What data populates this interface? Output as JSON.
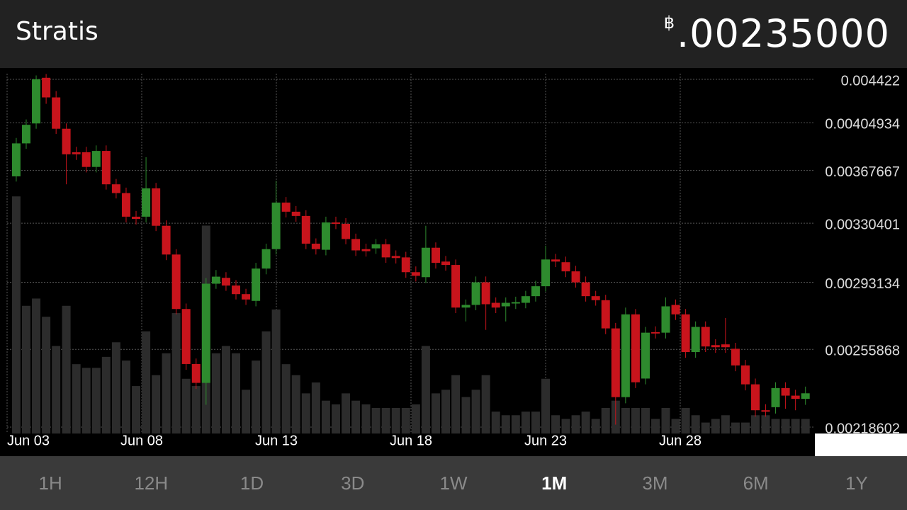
{
  "header": {
    "title": "Stratis",
    "currency": "฿",
    "price": ".00235000"
  },
  "tabs": [
    "1H",
    "12H",
    "1D",
    "3D",
    "1W",
    "1M",
    "3M",
    "6M",
    "1Y"
  ],
  "active_tab": "1M",
  "chart_data": {
    "type": "candlestick",
    "up_color": "#2e8b2e",
    "down_color": "#c8141c",
    "volume_color": "#2c2c2c",
    "log_scale": true,
    "grid": true,
    "xlim": [
      0,
      30
    ],
    "xticks": [
      {
        "value": 0,
        "label": "Jun 03"
      },
      {
        "value": 5,
        "label": "Jun 08"
      },
      {
        "value": 10,
        "label": "Jun 13"
      },
      {
        "value": 15,
        "label": "Jun 18"
      },
      {
        "value": 20,
        "label": "Jun 23"
      },
      {
        "value": 25,
        "label": "Jun 28"
      }
    ],
    "ylim": [
      0.00218602,
      0.004422
    ],
    "yticks": [
      0.004422,
      0.00404934,
      0.00367667,
      0.00330401,
      0.00293134,
      0.00255868,
      0.00218602
    ],
    "y2lim": [
      0,
      100
    ],
    "x": [
      0.34,
      0.71,
      1.08,
      1.45,
      1.82,
      2.2,
      2.57,
      2.94,
      3.31,
      3.68,
      4.05,
      4.42,
      4.79,
      5.16,
      5.53,
      5.91,
      6.28,
      6.65,
      7.02,
      7.39,
      7.76,
      8.13,
      8.5,
      8.87,
      9.24,
      9.62,
      9.99,
      10.36,
      10.73,
      11.1,
      11.47,
      11.84,
      12.21,
      12.58,
      12.95,
      13.33,
      13.7,
      14.07,
      14.44,
      14.81,
      15.18,
      15.55,
      15.92,
      16.29,
      16.66,
      17.04,
      17.41,
      17.78,
      18.15,
      18.52,
      18.89,
      19.26,
      19.63,
      20.0,
      20.37,
      20.75,
      21.12,
      21.49,
      21.86,
      22.23,
      22.6,
      22.97,
      23.34,
      23.71,
      24.08,
      24.46,
      24.83,
      25.2,
      25.57,
      25.94,
      26.31,
      26.68,
      27.05,
      27.42,
      27.79,
      28.17,
      28.54,
      28.91,
      29.28,
      29.65
    ],
    "open": [
      0.003633,
      0.003884,
      0.004044,
      0.004436,
      0.004263,
      0.004001,
      0.003815,
      0.003815,
      0.003703,
      0.003825,
      0.003575,
      0.003512,
      0.003348,
      0.003348,
      0.003546,
      0.003287,
      0.003101,
      0.002777,
      0.002484,
      0.002391,
      0.002923,
      0.002958,
      0.002912,
      0.002862,
      0.002823,
      0.003014,
      0.003135,
      0.003445,
      0.003382,
      0.003353,
      0.00317,
      0.003131,
      0.003309,
      0.0033,
      0.0032,
      0.003135,
      0.00314,
      0.003166,
      0.003092,
      0.003083,
      0.002992,
      0.002962,
      0.003144,
      0.003057,
      0.003036,
      0.002785,
      0.0028,
      0.002931,
      0.002812,
      0.002792,
      0.002808,
      0.002812,
      0.00285,
      0.002908,
      0.00307,
      0.003053,
      0.002997,
      0.002931,
      0.00285,
      0.002827,
      0.00267,
      0.002323,
      0.002747,
      0.002412,
      0.00265,
      0.002647,
      0.0028,
      0.002747,
      0.002545,
      0.002678,
      0.002581,
      0.002585,
      0.002562,
      0.002477,
      0.002384,
      0.002262,
      0.002276,
      0.002366,
      0.00233,
      0.002315
    ],
    "high": [
      0.003927,
      0.004077,
      0.004457,
      0.00447,
      0.004318,
      0.004044,
      0.003857,
      0.003857,
      0.003868,
      0.003868,
      0.003614,
      0.003551,
      0.003387,
      0.003777,
      0.003585,
      0.003323,
      0.003135,
      0.002808,
      0.002512,
      0.002957,
      0.003005,
      0.002992,
      0.002944,
      0.002893,
      0.003049,
      0.00317,
      0.0036,
      0.003484,
      0.003421,
      0.003392,
      0.003204,
      0.003348,
      0.003348,
      0.003338,
      0.003235,
      0.00317,
      0.0032,
      0.0032,
      0.003127,
      0.003118,
      0.003027,
      0.003287,
      0.003178,
      0.003092,
      0.00307,
      0.002831,
      0.002966,
      0.002966,
      0.002843,
      0.002843,
      0.002847,
      0.002881,
      0.00294,
      0.003157,
      0.003105,
      0.003088,
      0.003031,
      0.002966,
      0.002881,
      0.002858,
      0.0027,
      0.002785,
      0.002777,
      0.002678,
      0.002681,
      0.002843,
      0.002831,
      0.002777,
      0.002708,
      0.002708,
      0.002612,
      0.002727,
      0.002593,
      0.002505,
      0.002412,
      0.00229,
      0.002394,
      0.002394,
      0.002358,
      0.002373
    ],
    "low": [
      0.003595,
      0.003842,
      0.004001,
      0.004208,
      0.003959,
      0.003575,
      0.003756,
      0.003662,
      0.003662,
      0.003537,
      0.003474,
      0.003309,
      0.003295,
      0.003309,
      0.003252,
      0.003066,
      0.002747,
      0.002455,
      0.002362,
      0.002287,
      0.002893,
      0.002881,
      0.002831,
      0.0028,
      0.002792,
      0.002979,
      0.003101,
      0.003343,
      0.003314,
      0.003135,
      0.003101,
      0.003096,
      0.003265,
      0.003166,
      0.003092,
      0.003088,
      0.003105,
      0.003049,
      0.003045,
      0.002958,
      0.002936,
      0.002927,
      0.003014,
      0.003001,
      0.002754,
      0.002708,
      0.00277,
      0.002662,
      0.002754,
      0.002708,
      0.002777,
      0.002781,
      0.002819,
      0.002877,
      0.003023,
      0.002962,
      0.0029,
      0.002819,
      0.002796,
      0.002639,
      0.002197,
      0.002294,
      0.002366,
      0.002384,
      0.002616,
      0.002616,
      0.002716,
      0.002516,
      0.002516,
      0.002545,
      0.002541,
      0.002541,
      0.002448,
      0.002355,
      0.002233,
      0.002233,
      0.002247,
      0.002269,
      0.002262,
      0.002287
    ],
    "close": [
      0.003884,
      0.004033,
      0.004422,
      0.004263,
      0.004001,
      0.003799,
      0.003799,
      0.003703,
      0.003825,
      0.003575,
      0.003512,
      0.003348,
      0.003333,
      0.003546,
      0.003287,
      0.003101,
      0.002777,
      0.002484,
      0.002391,
      0.002923,
      0.002965,
      0.002912,
      0.002862,
      0.002831,
      0.003014,
      0.003135,
      0.003445,
      0.003382,
      0.003353,
      0.00317,
      0.003135,
      0.003309,
      0.0033,
      0.0032,
      0.003127,
      0.003122,
      0.003166,
      0.003083,
      0.003079,
      0.002992,
      0.00297,
      0.003144,
      0.003049,
      0.003036,
      0.002785,
      0.0028,
      0.002931,
      0.002804,
      0.002785,
      0.002812,
      0.002816,
      0.00285,
      0.002908,
      0.00307,
      0.003057,
      0.002997,
      0.002931,
      0.00285,
      0.002827,
      0.00267,
      0.002323,
      0.002747,
      0.002394,
      0.002647,
      0.002647,
      0.002792,
      0.002747,
      0.002545,
      0.002678,
      0.002574,
      0.00257,
      0.00257,
      0.002477,
      0.002384,
      0.002262,
      0.002258,
      0.002366,
      0.00233,
      0.002315,
      0.002341
    ],
    "volume": [
      65,
      35,
      37,
      32,
      24,
      35,
      19,
      18,
      18,
      21,
      25,
      20,
      13,
      28,
      16,
      22,
      33,
      15,
      13,
      57,
      22,
      24,
      22,
      12,
      20,
      28,
      34,
      19,
      16,
      11,
      14,
      9,
      8,
      11,
      9,
      8,
      7,
      7,
      7,
      7,
      8,
      24,
      11,
      12,
      16,
      10,
      12,
      16,
      6,
      5,
      5,
      6,
      6,
      15,
      5,
      4,
      5,
      6,
      4,
      7,
      9,
      7,
      7,
      7,
      4,
      7,
      4,
      7,
      5,
      3,
      4,
      5,
      3,
      3,
      5,
      5,
      4,
      4,
      4,
      4
    ]
  }
}
